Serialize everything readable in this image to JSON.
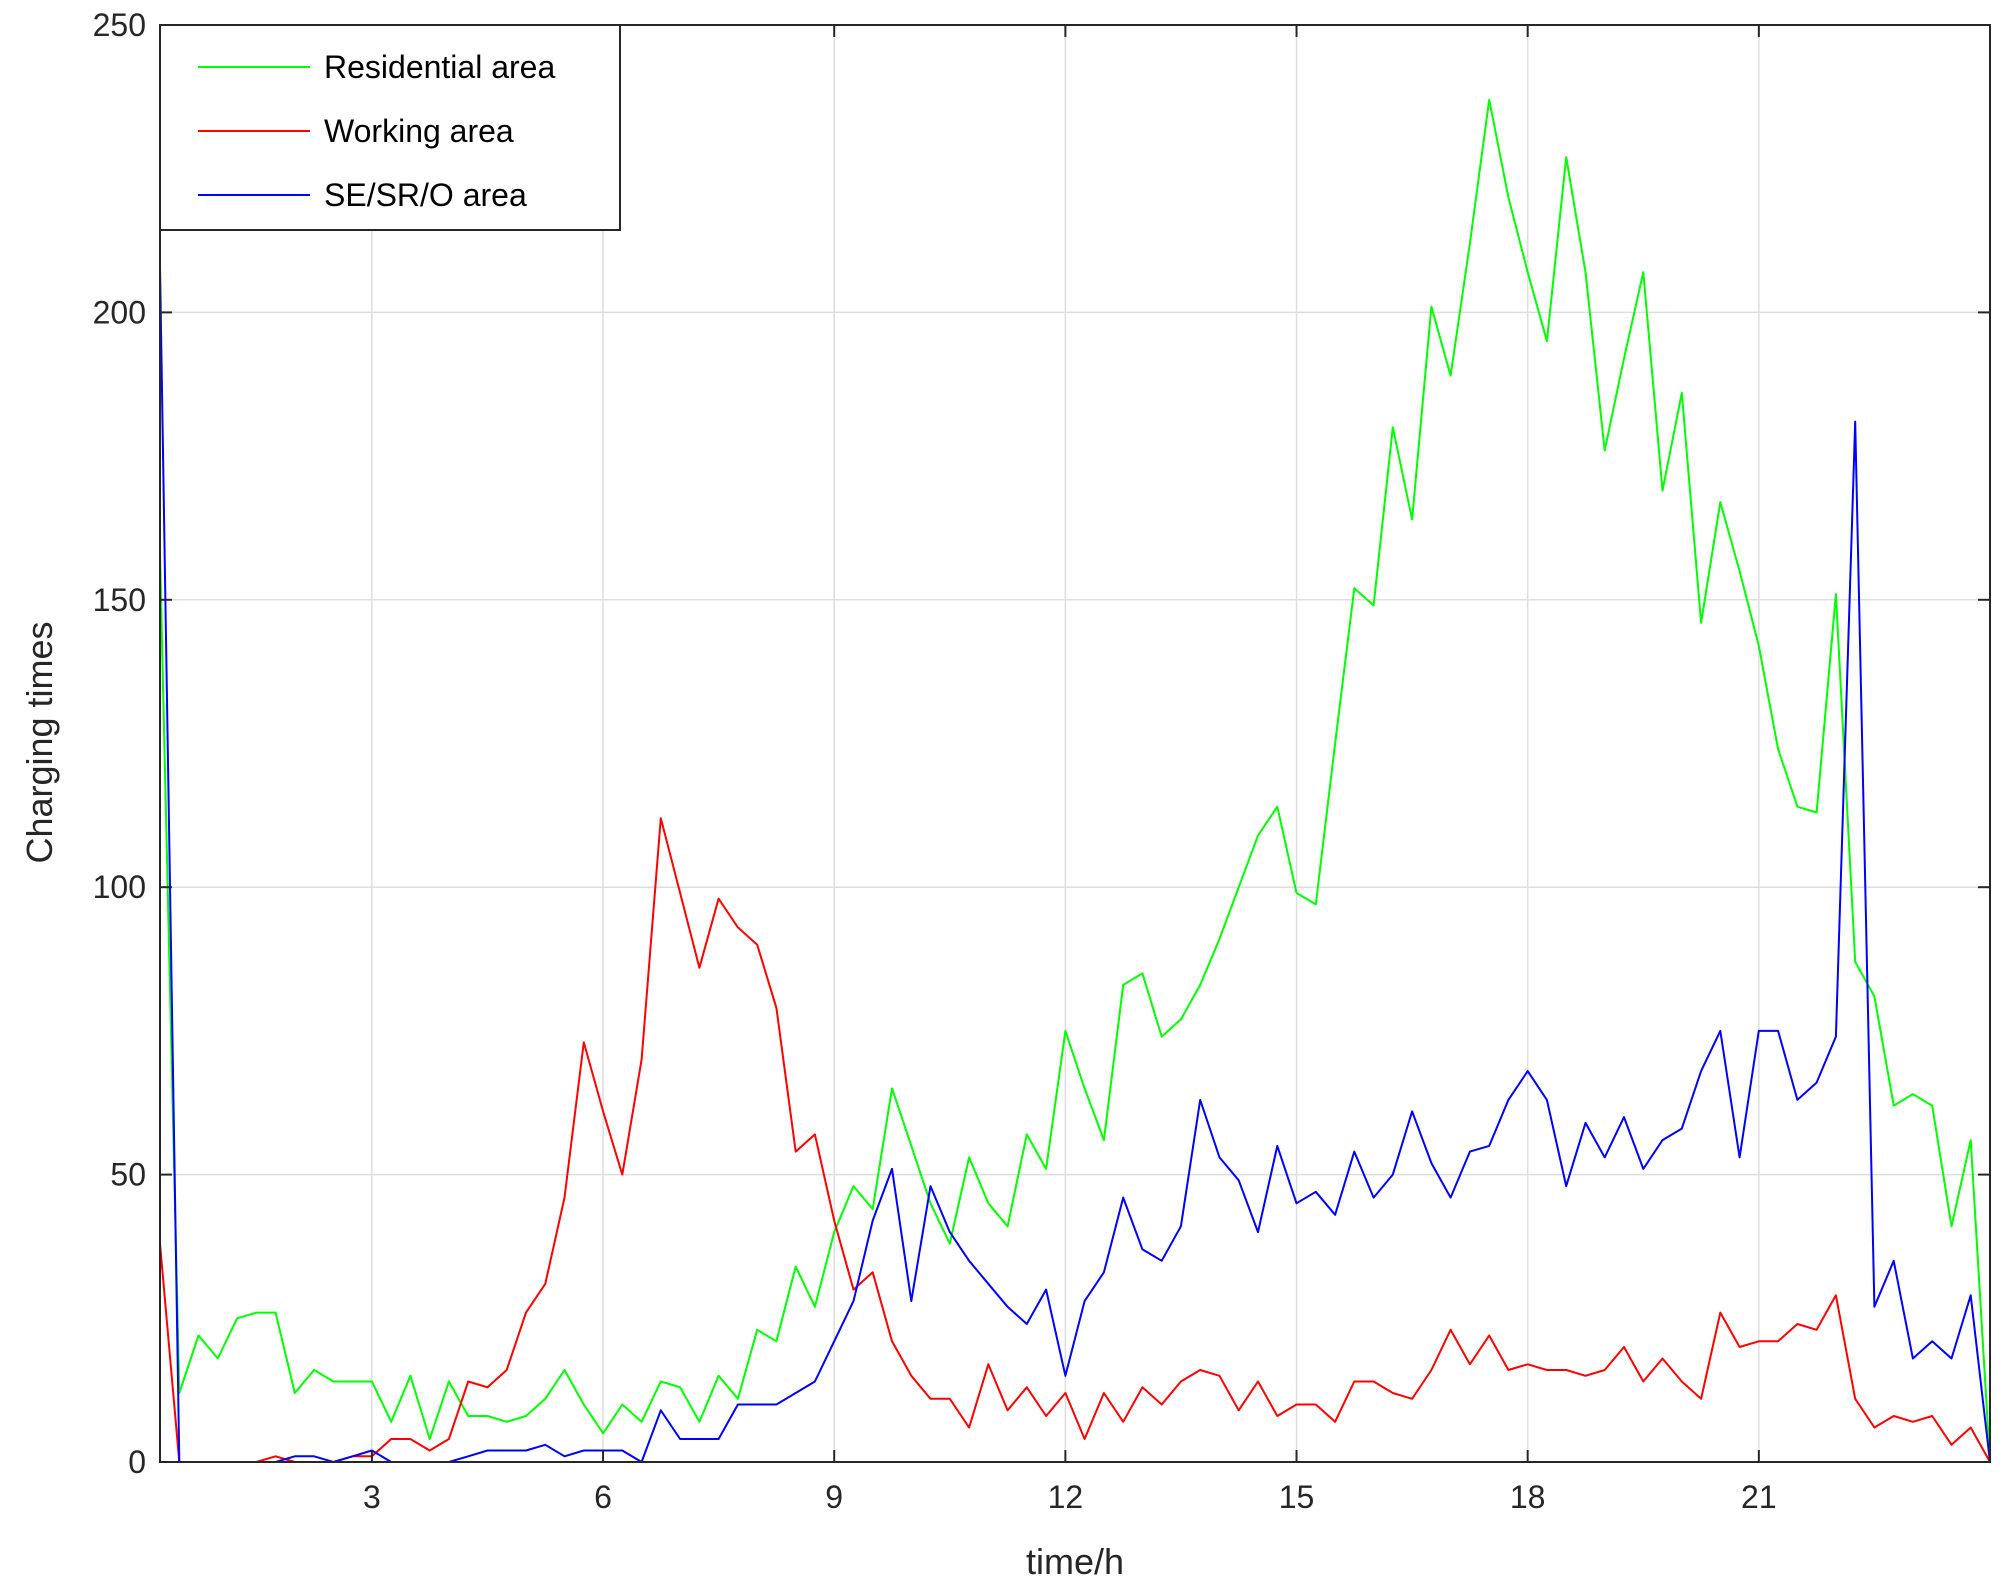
{
  "chart_data": {
    "type": "line",
    "xlabel": "time/h",
    "ylabel": "Charging times",
    "xlim": [
      0.25,
      24
    ],
    "ylim": [
      0,
      250
    ],
    "xticks": [
      3,
      6,
      9,
      12,
      15,
      18,
      21
    ],
    "yticks": [
      0,
      50,
      100,
      150,
      200,
      250
    ],
    "grid": true,
    "box": true,
    "legend_position": "top-left",
    "x_step_h": 0.25,
    "series": [
      {
        "name": "Residential area",
        "color": "#00ff00",
        "values": [
          158,
          12,
          22,
          18,
          25,
          26,
          26,
          12,
          16,
          14,
          14,
          14,
          7,
          15,
          4,
          14,
          8,
          8,
          7,
          8,
          11,
          16,
          10,
          5,
          10,
          7,
          14,
          13,
          7,
          15,
          11,
          23,
          21,
          34,
          27,
          40,
          48,
          44,
          65,
          55,
          45,
          38,
          53,
          45,
          41,
          57,
          51,
          75,
          65,
          56,
          83,
          85,
          74,
          77,
          83,
          91,
          100,
          109,
          114,
          99,
          97,
          125,
          152,
          149,
          180,
          164,
          201,
          189,
          212,
          237,
          220,
          207,
          195,
          227,
          207,
          176,
          192,
          207,
          169,
          186,
          146,
          167,
          155,
          142,
          124,
          114,
          113,
          151,
          87,
          81,
          62,
          64,
          62,
          41,
          56,
          0
        ]
      },
      {
        "name": "Working area",
        "color": "#ff0000",
        "values": [
          38,
          0,
          0,
          0,
          0,
          0,
          1,
          0,
          0,
          0,
          1,
          1,
          4,
          4,
          2,
          4,
          14,
          13,
          16,
          26,
          31,
          46,
          73,
          61,
          50,
          70,
          112,
          99,
          86,
          98,
          93,
          90,
          79,
          54,
          57,
          42,
          30,
          33,
          21,
          15,
          11,
          11,
          6,
          17,
          9,
          13,
          8,
          12,
          4,
          12,
          7,
          13,
          10,
          14,
          16,
          15,
          9,
          14,
          8,
          10,
          10,
          7,
          14,
          14,
          12,
          11,
          16,
          23,
          17,
          22,
          16,
          17,
          16,
          16,
          15,
          16,
          20,
          14,
          18,
          14,
          11,
          26,
          20,
          21,
          21,
          24,
          23,
          29,
          11,
          6,
          8,
          7,
          8,
          3,
          6,
          0
        ]
      },
      {
        "name": "SE/SR/O area",
        "color": "#0000ff",
        "values": [
          208,
          0,
          0,
          0,
          0,
          0,
          0,
          1,
          1,
          0,
          1,
          2,
          0,
          0,
          0,
          0,
          1,
          2,
          2,
          2,
          3,
          1,
          2,
          2,
          2,
          0,
          9,
          4,
          4,
          4,
          10,
          10,
          10,
          12,
          14,
          21,
          28,
          42,
          51,
          28,
          48,
          40,
          35,
          31,
          27,
          24,
          30,
          15,
          28,
          33,
          46,
          37,
          35,
          41,
          63,
          53,
          49,
          40,
          55,
          45,
          47,
          43,
          54,
          46,
          50,
          61,
          52,
          46,
          54,
          55,
          63,
          68,
          63,
          48,
          59,
          53,
          60,
          51,
          56,
          58,
          68,
          75,
          53,
          75,
          75,
          63,
          66,
          74,
          181,
          27,
          35,
          18,
          21,
          18,
          29,
          0
        ]
      }
    ]
  }
}
